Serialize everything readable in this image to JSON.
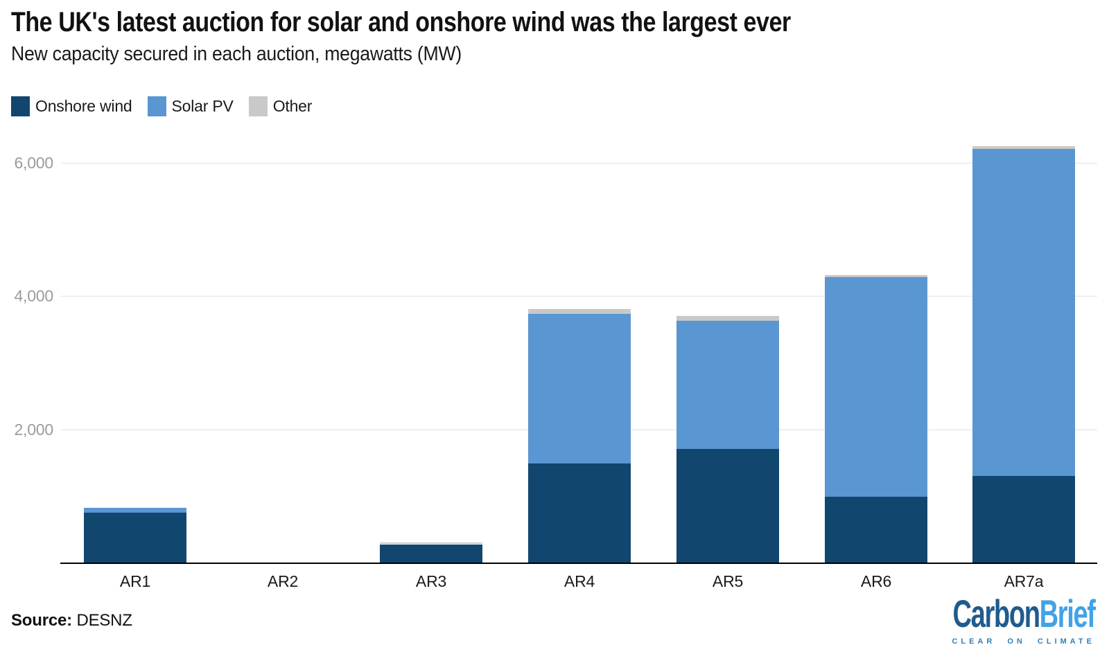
{
  "title": "The UK's latest auction for solar and onshore wind was the largest ever",
  "subtitle": "New capacity secured in each auction, megawatts (MW)",
  "source": {
    "label": "Source:",
    "value": "DESNZ"
  },
  "logo": {
    "carbon": "Carbon",
    "brief": "Brief",
    "tagline": "CLEAR ON CLIMATE"
  },
  "chart_data": {
    "type": "bar",
    "stacked": true,
    "title": "The UK's latest auction for solar and onshore wind was the largest ever",
    "subtitle": "New capacity secured in each auction, megawatts (MW)",
    "unit": "MW",
    "categories": [
      "AR1",
      "AR2",
      "AR3",
      "AR4",
      "AR5",
      "AR6",
      "AR7a"
    ],
    "series": [
      {
        "name": "Onshore wind",
        "color": "#11466f",
        "values": [
          750,
          0,
          275,
          1490,
          1700,
          990,
          1300
        ]
      },
      {
        "name": "Solar PV",
        "color": "#5a96d2",
        "values": [
          72,
          0,
          0,
          2240,
          1930,
          3290,
          4900
        ]
      },
      {
        "name": "Other",
        "color": "#c9c9c9",
        "values": [
          0,
          0,
          30,
          70,
          70,
          30,
          40
        ]
      }
    ],
    "totals": [
      822,
      0,
      305,
      3800,
      3700,
      4310,
      6240
    ],
    "ylim": [
      0,
      6500
    ],
    "yticks": [
      {
        "value": 2000,
        "label": "2,000"
      },
      {
        "value": 4000,
        "label": "4,000"
      },
      {
        "value": 6000,
        "label": "6,000"
      }
    ],
    "grid": true,
    "legend_position": "top-left",
    "xlabel": "",
    "ylabel": "megawatts (MW)"
  }
}
